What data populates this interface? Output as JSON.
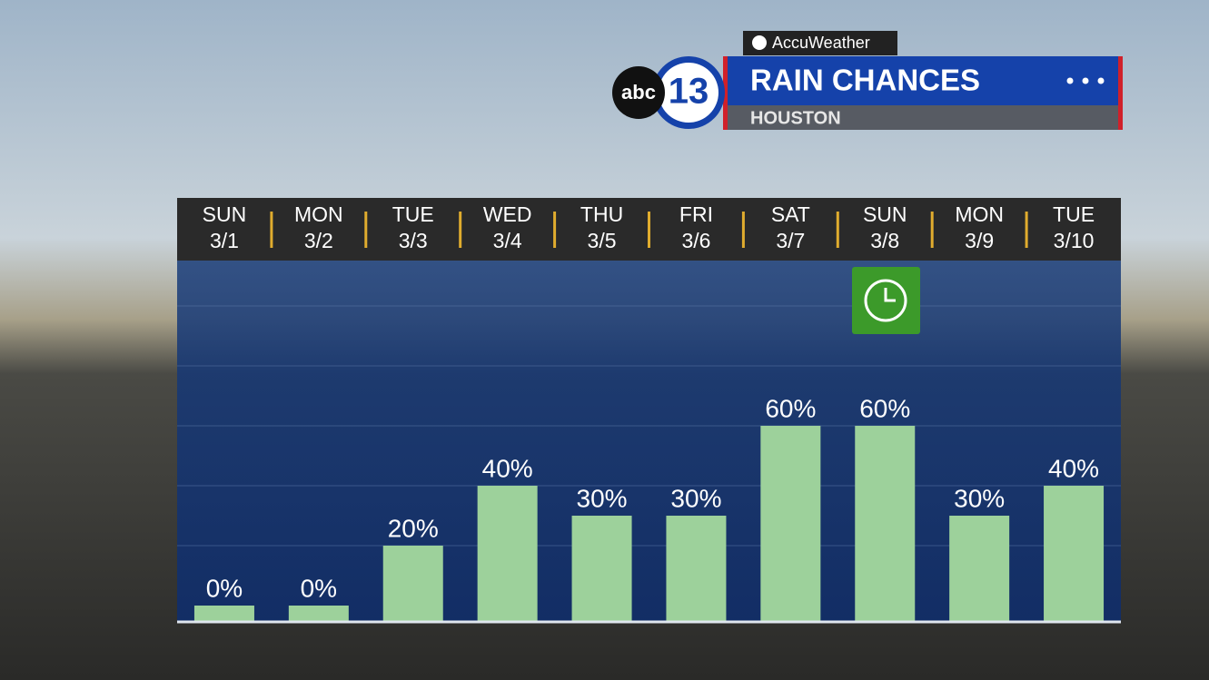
{
  "brand": {
    "network": "abc",
    "channel": "13",
    "provider": "AccuWeather"
  },
  "chart_data": {
    "type": "bar",
    "title": "RAIN CHANCES",
    "subtitle": "HOUSTON",
    "categories": [
      "SUN",
      "MON",
      "TUE",
      "WED",
      "THU",
      "FRI",
      "SAT",
      "SUN",
      "MON",
      "TUE"
    ],
    "dates": [
      "3/1",
      "3/2",
      "3/3",
      "3/4",
      "3/5",
      "3/6",
      "3/7",
      "3/8",
      "3/9",
      "3/10"
    ],
    "values": [
      0,
      0,
      20,
      40,
      30,
      30,
      60,
      60,
      30,
      40
    ],
    "value_labels": [
      "0%",
      "0%",
      "20%",
      "40%",
      "30%",
      "30%",
      "60%",
      "60%",
      "30%",
      "40%"
    ],
    "color": "#9dd19b",
    "ylim": [
      0,
      100
    ],
    "yticks": [
      20,
      40,
      60,
      80,
      100
    ],
    "grid": true
  }
}
